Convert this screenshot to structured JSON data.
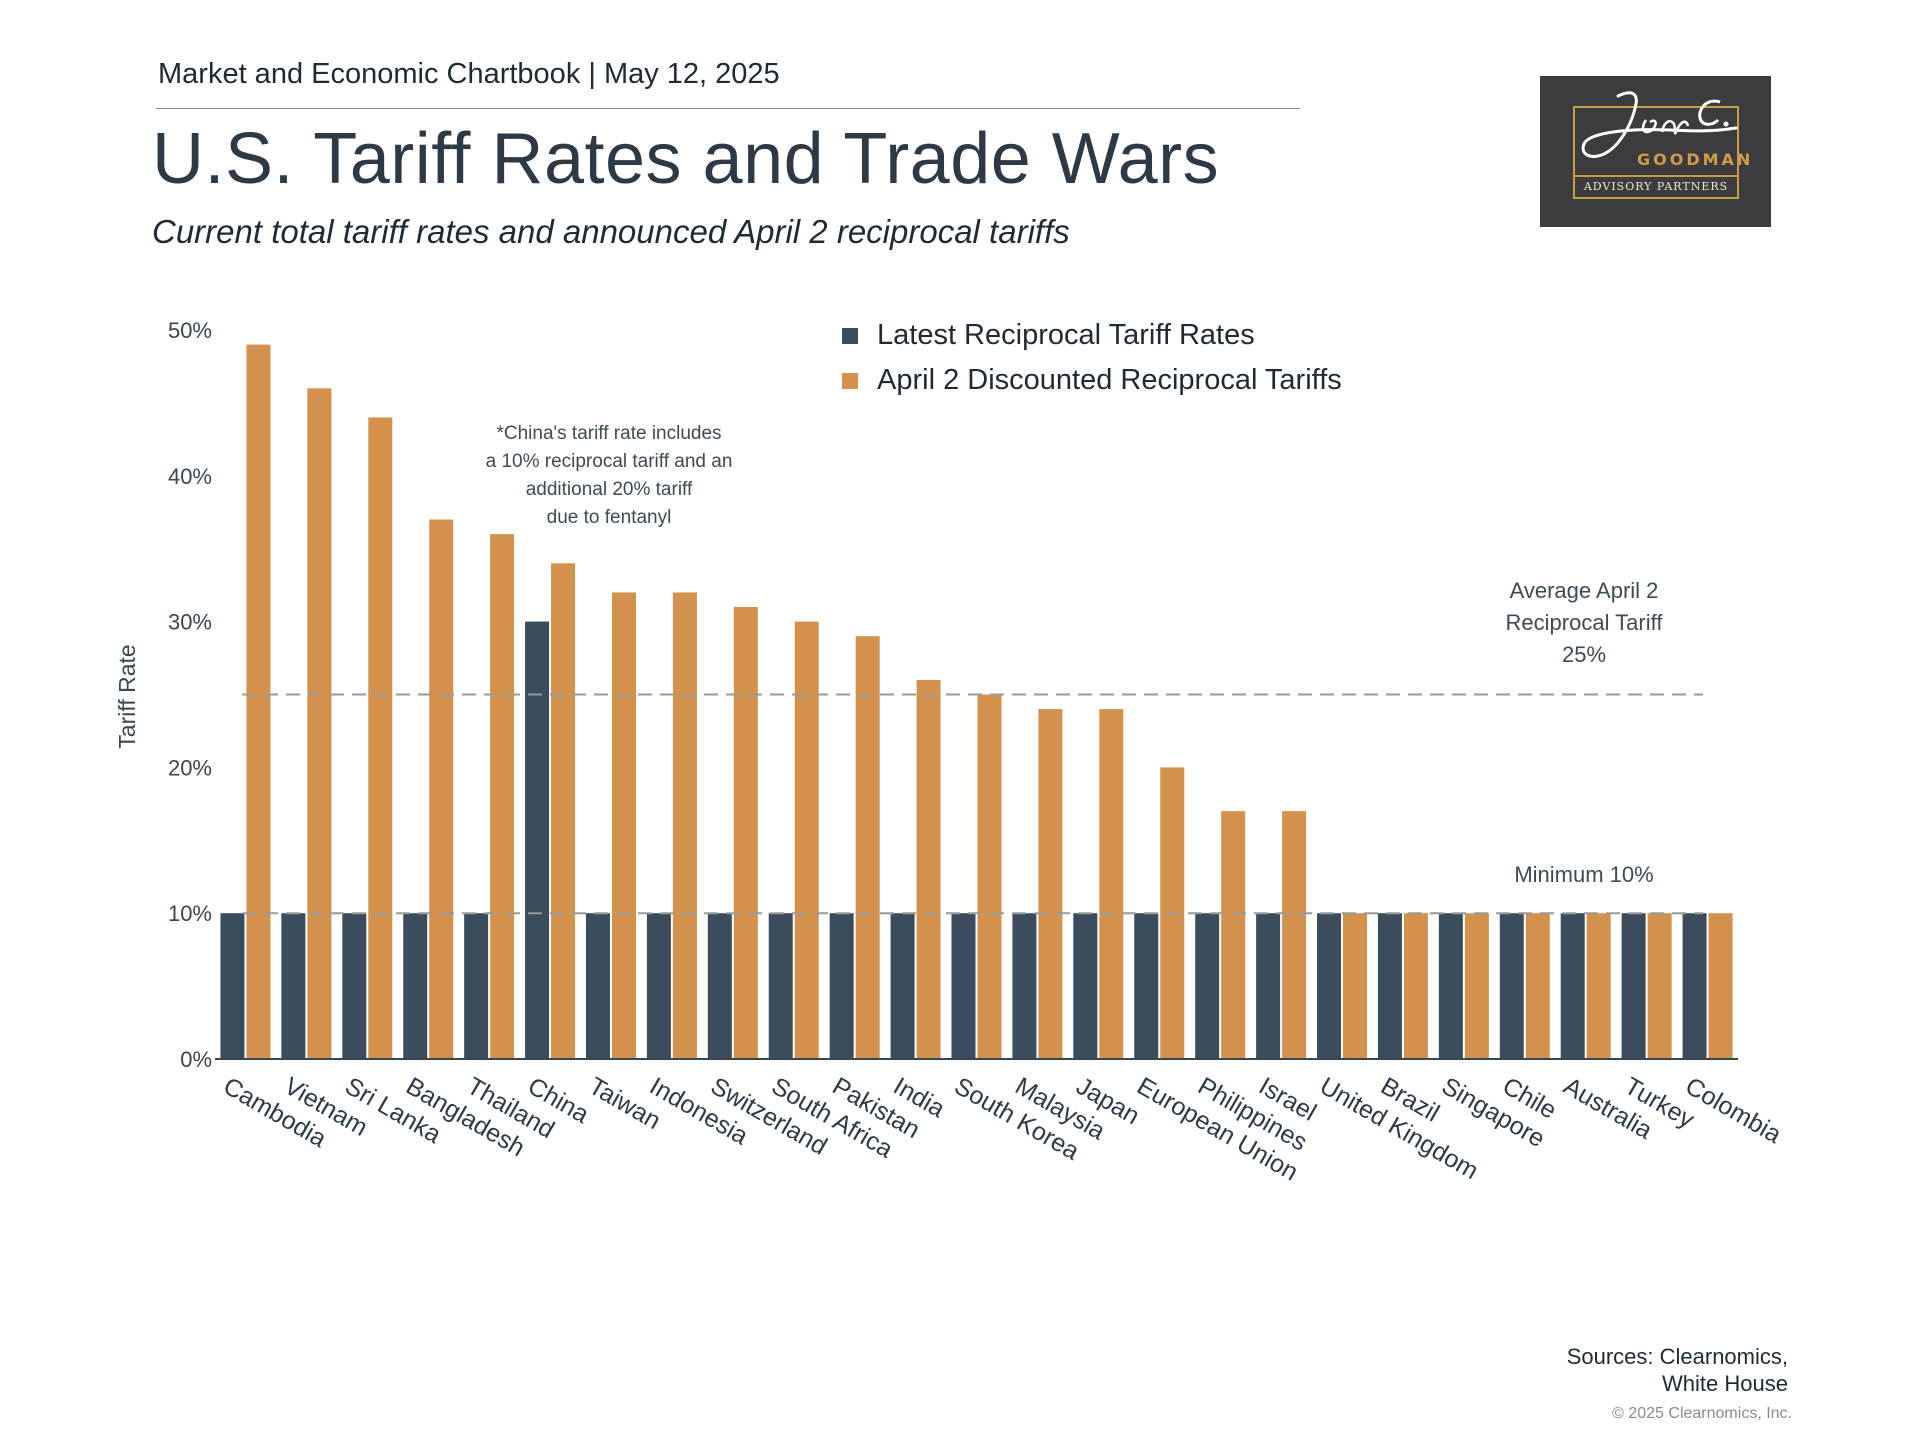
{
  "header": {
    "eyebrow": "Market and Economic Chartbook | May 12, 2025",
    "title": "U.S. Tariff Rates and Trade Wars",
    "subtitle": "Current total tariff rates and announced April 2 reciprocal tariffs"
  },
  "logo": {
    "wordmark": "GOODMAN",
    "tagline": "ADVISORY PARTNERS",
    "signature": "Jon C."
  },
  "colors": {
    "latest": "#3b4d5c",
    "april2": "#d2914c",
    "reference_line": "#9a9a9a"
  },
  "chart_data": {
    "type": "bar",
    "ylabel": "Tariff Rate",
    "ylim": [
      0,
      50
    ],
    "yticks": [
      "0%",
      "10%",
      "20%",
      "30%",
      "40%",
      "50%"
    ],
    "grid": false,
    "legend_position": "top-center",
    "categories": [
      "Cambodia",
      "Vietnam",
      "Sri Lanka",
      "Bangladesh",
      "Thailand",
      "China",
      "Taiwan",
      "Indonesia",
      "Switzerland",
      "South Africa",
      "Pakistan",
      "India",
      "South Korea",
      "Malaysia",
      "Japan",
      "European Union",
      "Philippines",
      "Israel",
      "United Kingdom",
      "Brazil",
      "Singapore",
      "Chile",
      "Australia",
      "Turkey",
      "Colombia"
    ],
    "series": [
      {
        "name": "Latest Reciprocal Tariff Rates",
        "values": [
          10,
          10,
          10,
          10,
          10,
          30,
          10,
          10,
          10,
          10,
          10,
          10,
          10,
          10,
          10,
          10,
          10,
          10,
          10,
          10,
          10,
          10,
          10,
          10,
          10
        ]
      },
      {
        "name": "April 2 Discounted Reciprocal Tariffs",
        "values": [
          49,
          46,
          44,
          37,
          36,
          34,
          32,
          32,
          31,
          30,
          29,
          26,
          25,
          24,
          24,
          20,
          17,
          17,
          10,
          10,
          10,
          10,
          10,
          10,
          10
        ]
      }
    ],
    "reference_lines": [
      {
        "value": 25,
        "label": [
          "Average April 2",
          "Reciprocal Tariff",
          "25%"
        ]
      },
      {
        "value": 10,
        "label": [
          "Minimum 10%"
        ]
      }
    ],
    "annotations": [
      {
        "lines": [
          "*China's tariff rate includes",
          "a 10% reciprocal tariff and an",
          "additional 20% tariff",
          "due to fentanyl"
        ]
      }
    ]
  },
  "footer": {
    "sources": [
      "Sources: Clearnomics,",
      "White House"
    ],
    "copyright": "© 2025 Clearnomics, Inc."
  }
}
